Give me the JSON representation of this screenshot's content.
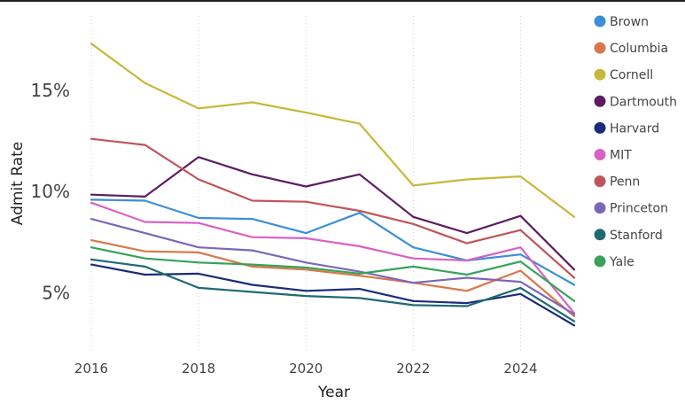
{
  "chart_data": {
    "type": "line",
    "title": "",
    "xlabel": "Year",
    "ylabel": "Admit Rate",
    "x": [
      2016,
      2017,
      2018,
      2019,
      2020,
      2021,
      2022,
      2023,
      2024,
      2025
    ],
    "xticks": [
      2016,
      2018,
      2020,
      2022,
      2024
    ],
    "xtick_labels": [
      "2016",
      "2018",
      "2020",
      "2022",
      "2024"
    ],
    "yticks": [
      5,
      10,
      15
    ],
    "ytick_labels": [
      "5%",
      "10%",
      "15%"
    ],
    "xlim": [
      2016,
      2025
    ],
    "ylim": [
      2.1,
      18.4
    ],
    "grid": "vertical dotted",
    "legend_position": "right",
    "series": [
      {
        "name": "Brown",
        "color": "#3a8fd6",
        "values": [
          9.6,
          9.55,
          8.7,
          8.65,
          7.95,
          8.95,
          7.25,
          6.6,
          6.9,
          5.4
        ]
      },
      {
        "name": "Columbia",
        "color": "#d9774a",
        "values": [
          7.6,
          7.05,
          7.0,
          6.3,
          6.15,
          5.85,
          5.5,
          5.1,
          6.1,
          3.85
        ]
      },
      {
        "name": "Cornell",
        "color": "#c8b83a",
        "values": [
          17.3,
          15.35,
          14.1,
          14.4,
          13.9,
          13.35,
          10.3,
          10.6,
          10.75,
          8.75
        ]
      },
      {
        "name": "Dartmouth",
        "color": "#5c1c62",
        "values": [
          9.85,
          9.75,
          11.7,
          10.85,
          10.25,
          10.85,
          8.75,
          7.95,
          8.8,
          6.15
        ]
      },
      {
        "name": "Harvard",
        "color": "#1a2c7a",
        "values": [
          6.4,
          5.9,
          5.95,
          5.4,
          5.1,
          5.2,
          4.6,
          4.5,
          4.95,
          3.4
        ]
      },
      {
        "name": "MIT",
        "color": "#d861c4",
        "values": [
          9.45,
          8.5,
          8.45,
          7.75,
          7.7,
          7.3,
          6.7,
          6.6,
          7.25,
          4.0
        ]
      },
      {
        "name": "Penn",
        "color": "#c0545c",
        "values": [
          12.6,
          12.3,
          10.6,
          9.55,
          9.5,
          9.05,
          8.4,
          7.45,
          8.1,
          5.75
        ]
      },
      {
        "name": "Princeton",
        "color": "#7b67b8",
        "values": [
          8.65,
          7.95,
          7.25,
          7.1,
          6.5,
          6.05,
          5.5,
          5.75,
          5.55,
          3.95
        ]
      },
      {
        "name": "Stanford",
        "color": "#1f6a72",
        "values": [
          6.65,
          6.3,
          5.25,
          5.05,
          4.85,
          4.75,
          4.4,
          4.35,
          5.25,
          3.6
        ]
      },
      {
        "name": "Yale",
        "color": "#36a25a",
        "values": [
          7.25,
          6.7,
          6.5,
          6.4,
          6.25,
          5.95,
          6.3,
          5.9,
          6.55,
          4.6
        ]
      }
    ]
  }
}
